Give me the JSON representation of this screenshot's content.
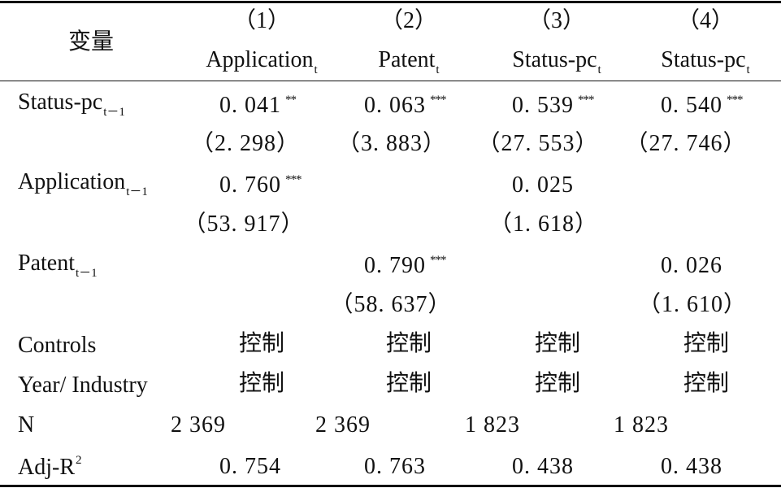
{
  "header": {
    "var_label": "变量",
    "columns": [
      {
        "num": "（1）",
        "name": "Application",
        "sub": "t"
      },
      {
        "num": "（2）",
        "name": "Patent",
        "sub": "t"
      },
      {
        "num": "（3）",
        "name": "Status-pc",
        "sub": "t"
      },
      {
        "num": "（4）",
        "name": "Status-pc",
        "sub": "t"
      }
    ]
  },
  "rows": {
    "status_pc": {
      "name": "Status-pc",
      "sub": "t－1",
      "coef": [
        "0. 041",
        "0. 063",
        "0. 539",
        "0. 540"
      ],
      "stars": [
        "**",
        "***",
        "***",
        "***"
      ],
      "t": [
        "（2. 298）",
        "（3. 883）",
        "（27. 553）",
        "（27. 746）"
      ]
    },
    "application": {
      "name": "Application",
      "sub": "t－1",
      "c1": "0. 760",
      "c1_stars": "***",
      "c1_t": "（53. 917）",
      "c3": "0. 025",
      "c3_t": "（1. 618）"
    },
    "patent": {
      "name": "Patent",
      "sub": "t－1",
      "c2": "0. 790",
      "c2_stars": "***",
      "c2_t": "（58. 637）",
      "c4": "0. 026",
      "c4_t": "（1. 610）"
    },
    "controls": {
      "name": "Controls",
      "values": [
        "控制",
        "控制",
        "控制",
        "控制"
      ]
    },
    "year_industry": {
      "name": "Year/ Industry",
      "values": [
        "控制",
        "控制",
        "控制",
        "控制"
      ]
    },
    "n": {
      "name": "N",
      "values": [
        "2 369",
        "2 369",
        "1 823",
        "1 823"
      ]
    },
    "adj_r2": {
      "name": "Adj-R",
      "sup": "2",
      "values": [
        "0. 754",
        "0. 763",
        "0. 438",
        "0. 438"
      ]
    }
  }
}
